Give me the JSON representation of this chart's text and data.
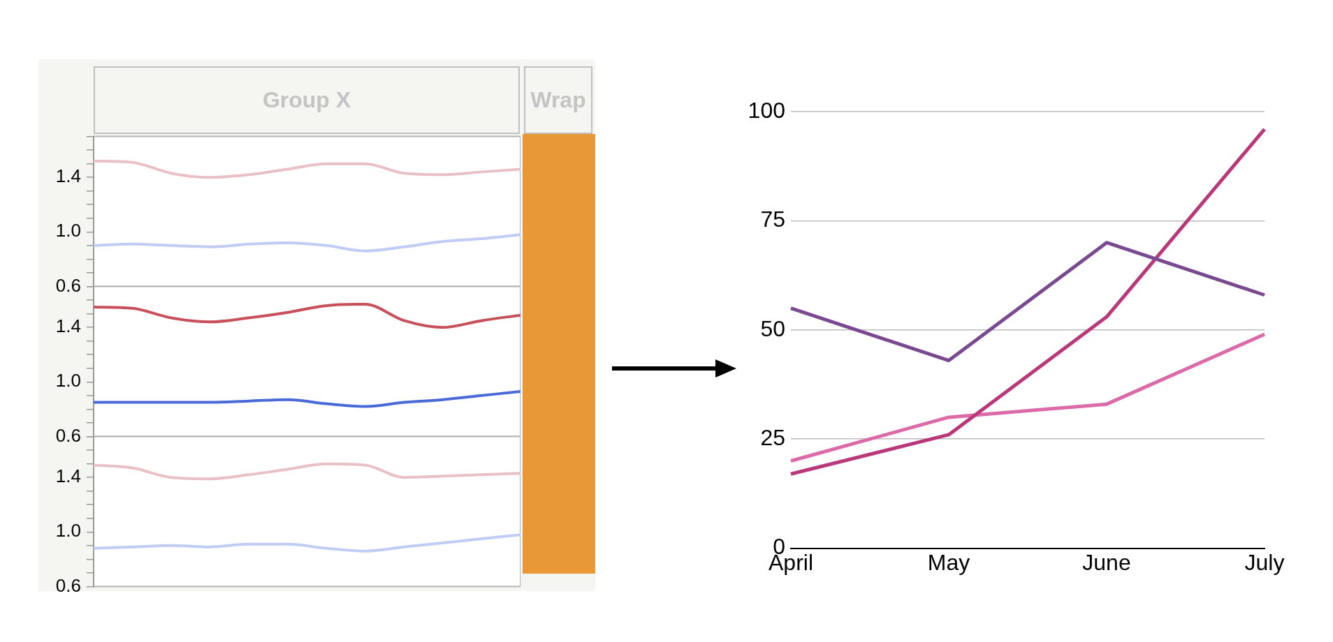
{
  "chart_data": [
    {
      "type": "line",
      "title": "Group X",
      "annotations": [
        "Wrap"
      ],
      "categories": [
        null,
        null,
        null,
        null,
        null,
        null,
        null,
        null,
        null,
        null,
        null,
        null
      ],
      "series": [
        {
          "color": "#e8c0c6",
          "values": [
            1.52,
            1.51,
            1.43,
            1.4,
            1.42,
            1.46,
            1.5,
            1.5,
            1.43,
            1.42,
            1.44,
            1.46
          ]
        },
        {
          "color": "#c0ccf4",
          "values": [
            0.9,
            0.91,
            0.9,
            0.89,
            0.91,
            0.92,
            0.9,
            0.86,
            0.89,
            0.93,
            0.95,
            0.98
          ]
        }
      ],
      "ylim": [
        0.6,
        1.7
      ],
      "yticks": [
        0.6,
        {
          "value": 0.7,
          "label": null
        },
        {
          "value": 0.8,
          "label": null
        },
        {
          "value": 0.9,
          "label": null
        },
        {
          "value": 1,
          "label": "1.0"
        },
        {
          "value": 1.1,
          "label": null
        },
        {
          "value": 1.2,
          "label": null
        },
        {
          "value": 1.3,
          "label": null
        },
        1.4,
        {
          "value": 1.5,
          "label": null
        },
        {
          "value": 1.6,
          "label": null
        },
        {
          "value": 1.7,
          "label": null
        }
      ],
      "tick_labels": "y",
      "marker": "none"
    },
    {
      "type": "line",
      "categories": [
        null,
        null,
        null,
        null,
        null,
        null,
        null,
        null,
        null,
        null,
        null,
        null
      ],
      "series": [
        {
          "color": "#c8505a",
          "values": [
            1.55,
            1.54,
            1.47,
            1.44,
            1.47,
            1.51,
            1.56,
            1.57,
            1.45,
            1.4,
            1.45,
            1.49
          ]
        },
        {
          "color": "#4a6ad8",
          "values": [
            0.85,
            0.85,
            0.85,
            0.85,
            0.86,
            0.87,
            0.84,
            0.82,
            0.85,
            0.87,
            0.9,
            0.93
          ]
        }
      ],
      "ylim": [
        0.6,
        1.7
      ],
      "yticks": [
        0.6,
        {
          "value": 0.7,
          "label": null
        },
        {
          "value": 0.8,
          "label": null
        },
        {
          "value": 0.9,
          "label": null
        },
        {
          "value": 1,
          "label": "1.0"
        },
        {
          "value": 1.1,
          "label": null
        },
        {
          "value": 1.2,
          "label": null
        },
        {
          "value": 1.3,
          "label": null
        },
        1.4,
        {
          "value": 1.5,
          "label": null
        },
        {
          "value": 1.6,
          "label": null
        },
        {
          "value": 1.7,
          "label": null
        }
      ],
      "tick_labels": "y",
      "marker": "none"
    },
    {
      "type": "line",
      "categories": [
        null,
        null,
        null,
        null,
        null,
        null,
        null,
        null,
        null,
        null,
        null,
        null
      ],
      "series": [
        {
          "color": "#e8c0c6",
          "values": [
            1.49,
            1.47,
            1.4,
            1.39,
            1.42,
            1.46,
            1.5,
            1.49,
            1.4,
            1.41,
            1.42,
            1.43
          ]
        },
        {
          "color": "#c0ccf4",
          "values": [
            0.88,
            0.89,
            0.9,
            0.89,
            0.91,
            0.91,
            0.88,
            0.86,
            0.89,
            0.92,
            0.95,
            0.98
          ]
        }
      ],
      "ylim": [
        0.6,
        1.7
      ],
      "yticks": [
        0.6,
        {
          "value": 0.7,
          "label": null
        },
        {
          "value": 0.8,
          "label": null
        },
        {
          "value": 0.9,
          "label": null
        },
        {
          "value": 1,
          "label": "1.0"
        },
        {
          "value": 1.1,
          "label": null
        },
        {
          "value": 1.2,
          "label": null
        },
        {
          "value": 1.3,
          "label": null
        },
        1.4,
        {
          "value": 1.5,
          "label": null
        },
        {
          "value": 1.6,
          "label": null
        },
        {
          "value": 1.7,
          "label": null
        }
      ],
      "tick_labels": "y",
      "marker": "none"
    },
    {
      "type": "line",
      "categories": [
        "April",
        "May",
        "June",
        "July"
      ],
      "series": [
        {
          "color": "#7a4a90",
          "values": [
            55,
            43,
            70,
            58
          ]
        },
        {
          "color": "#b8387a",
          "values": [
            17,
            26,
            53,
            96
          ]
        },
        {
          "color": "#dc6aa8",
          "values": [
            20,
            30,
            33,
            49
          ]
        }
      ],
      "ylim": [
        0,
        100
      ],
      "yticks": [
        0,
        25,
        50,
        75,
        100
      ],
      "grid": "y",
      "marker": "none"
    }
  ]
}
